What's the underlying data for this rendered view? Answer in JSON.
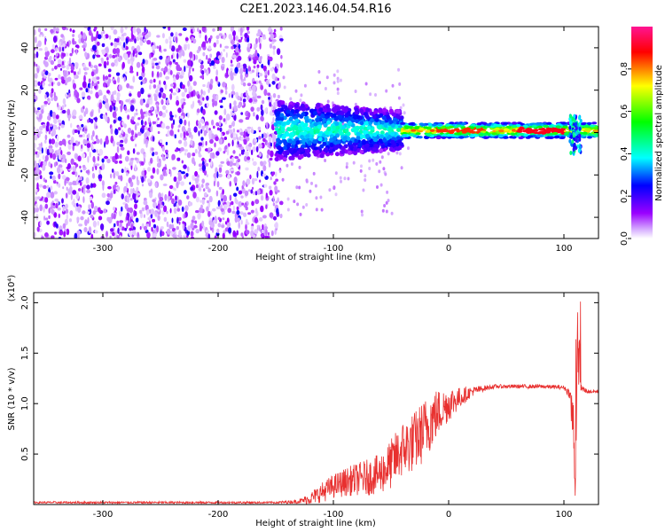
{
  "figure": {
    "title": "C2E1.2023.146.04.54.R16"
  },
  "chart_data": [
    {
      "type": "heatmap",
      "xlabel": "Height of straight line (km)",
      "ylabel": "Frequency (Hz)",
      "xlim": [
        -360,
        130
      ],
      "ylim": [
        -50,
        50
      ],
      "xticks": [
        -300,
        -200,
        -100,
        0,
        100
      ],
      "yticks": [
        -40,
        -20,
        0,
        20,
        40
      ],
      "colorbar": {
        "label": "Normalized spectral amplitude",
        "range": [
          0.0,
          1.0
        ],
        "ticks": [
          "0.0",
          "0.2",
          "0.4",
          "0.6",
          "0.8"
        ],
        "colors": [
          "#ffffff",
          "#9a00ff",
          "#0000ff",
          "#00ffff",
          "#00ff00",
          "#ffff00",
          "#ff0000",
          "#ff1493"
        ]
      },
      "regions": [
        {
          "x": [
            -360,
            -145
          ],
          "freq": [
            -50,
            50
          ],
          "amplitude": [
            0.0,
            0.15
          ],
          "pattern": "scattered noise"
        },
        {
          "x": [
            -150,
            -40
          ],
          "freq": [
            -10,
            10
          ],
          "amplitude": [
            0.1,
            0.4
          ],
          "pattern": "broad band"
        },
        {
          "x": [
            -40,
            130
          ],
          "freq": [
            -3,
            4
          ],
          "amplitude": [
            0.3,
            0.95
          ],
          "pattern": "narrow band near 0 Hz"
        },
        {
          "x": [
            105,
            115
          ],
          "freq": [
            -10,
            8
          ],
          "amplitude": [
            0.2,
            0.5
          ],
          "pattern": "spike"
        }
      ]
    },
    {
      "type": "line",
      "xlabel": "Height of straight line (km)",
      "ylabel": "SNR (10 * v/v)",
      "multiplier": "(x10⁴)",
      "xlim": [
        -360,
        130
      ],
      "ylim": [
        0,
        2.1
      ],
      "xticks": [
        -300,
        -200,
        -100,
        0,
        100
      ],
      "yticks": [
        "0.5",
        "1.0",
        "1.5",
        "2.0"
      ],
      "series": [
        {
          "color": "#e8302f",
          "x": [
            -360,
            -300,
            -200,
            -150,
            -130,
            -120,
            -110,
            -100,
            -90,
            -80,
            -70,
            -60,
            -50,
            -40,
            -30,
            -20,
            -15,
            -10,
            -5,
            0,
            10,
            20,
            30,
            40,
            60,
            80,
            100,
            105,
            108,
            110,
            112,
            115,
            120,
            130
          ],
          "y": [
            0.02,
            0.02,
            0.02,
            0.02,
            0.03,
            0.06,
            0.12,
            0.18,
            0.22,
            0.25,
            0.27,
            0.3,
            0.4,
            0.55,
            0.62,
            0.75,
            0.85,
            0.9,
            0.95,
            1.0,
            1.06,
            1.12,
            1.15,
            1.17,
            1.17,
            1.17,
            1.16,
            1.1,
            0.8,
            0.2,
            1.6,
            1.15,
            1.12,
            1.12
          ],
          "noise": [
            0.01,
            0.01,
            0.01,
            0.01,
            0.02,
            0.06,
            0.1,
            0.12,
            0.14,
            0.16,
            0.18,
            0.2,
            0.25,
            0.28,
            0.3,
            0.32,
            0.3,
            0.25,
            0.2,
            0.18,
            0.1,
            0.05,
            0.03,
            0.02,
            0.02,
            0.02,
            0.02,
            0.05,
            0.4,
            0.2,
            0.45,
            0.05,
            0.02,
            0.02
          ]
        }
      ]
    }
  ]
}
